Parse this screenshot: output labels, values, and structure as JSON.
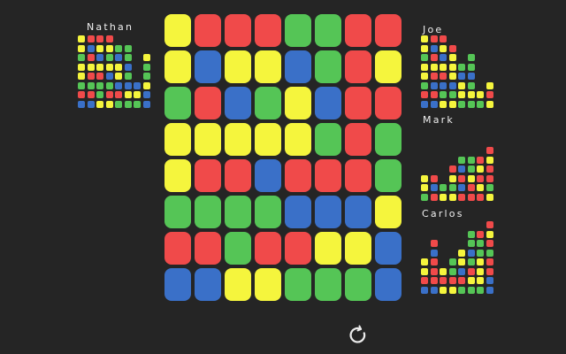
{
  "background": "#252525",
  "colors": {
    "R": "#f04a4a",
    "Y": "#f5f53d",
    "G": "#55c556",
    "B": "#3a70c8"
  },
  "main_board": {
    "rows": [
      "YRRRGGRR",
      "YBYYBGRY",
      "GRBGYBRR",
      "YYYYYGRG",
      "YRRBRRRG",
      "GGGGBBBY",
      "RRGRRYYB",
      "BBYYGGGB"
    ]
  },
  "players": [
    {
      "name": "Nathan",
      "rows": [
        "YRRR....",
        "YBYYGG..",
        "GRBGBG.Y",
        "YYYYYB.G",
        "YRRBYG.G",
        "GGGGBBBY",
        "RRGRRYYB",
        "BBYYGGGB"
      ]
    },
    {
      "name": "Joe",
      "rows": [
        "YRR.....",
        "YBYR....",
        "GRBY.G..",
        "YYYYGG..",
        "YRRYBB..",
        "GBBBYG.Y",
        "RRGGYYYR",
        "BBYYGGGY"
      ]
    },
    {
      "name": "Mark",
      "rows": [
        "........",
        "........",
        ".......R",
        "....GGRY",
        "...RBGYR",
        "YR.YRYRR",
        "YBGGBRYG",
        "GRYYRRRY"
      ]
    },
    {
      "name": "Carlos",
      "rows": [
        ".......R",
        ".....GRY",
        ".R...GGR",
        ".B..YBGG",
        "YR.GYGYR",
        "YRYGBRYR",
        "RRRRRYYB",
        "BBYYGGGB"
      ]
    }
  ],
  "controls": {
    "restart_label": "restart"
  }
}
